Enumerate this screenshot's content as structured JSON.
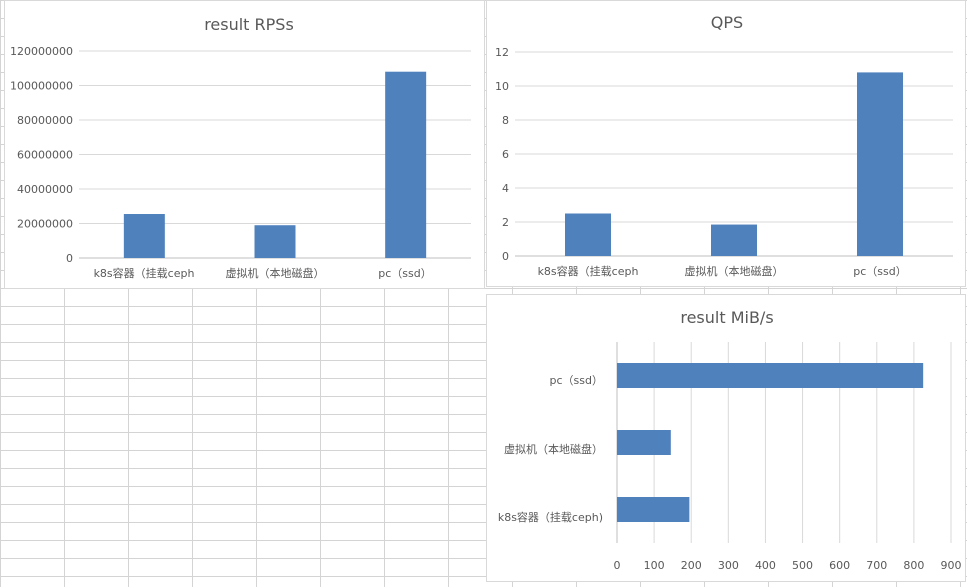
{
  "colors": {
    "bar": "#4f81bd",
    "grid": "#d9d9d9",
    "text": "#595959"
  },
  "chart_data": [
    {
      "id": "rps",
      "type": "bar",
      "title": "result RPSs",
      "categories": [
        "k8s容器（挂载ceph",
        "虚拟机（本地磁盘）",
        "pc（ssd）"
      ],
      "values": [
        25500000,
        19000000,
        108000000
      ],
      "ylim": [
        0,
        120000000
      ],
      "yticks": [
        "0",
        "20000000",
        "40000000",
        "60000000",
        "80000000",
        "100000000",
        "120000000"
      ],
      "grid": true,
      "legend": "none"
    },
    {
      "id": "qps",
      "type": "bar",
      "title": "QPS",
      "categories": [
        "k8s容器（挂载ceph",
        "虚拟机（本地磁盘）",
        "pc（ssd）"
      ],
      "values": [
        2.5,
        1.85,
        10.8
      ],
      "ylim": [
        0,
        12
      ],
      "yticks": [
        "0",
        "2",
        "4",
        "6",
        "8",
        "10",
        "12"
      ],
      "grid": true,
      "legend": "none"
    },
    {
      "id": "mib",
      "type": "bar",
      "orientation": "horizontal",
      "title": "result MiB/s",
      "categories": [
        "pc（ssd）",
        "虚拟机（本地磁盘）",
        "k8s容器（挂载ceph)"
      ],
      "values": [
        825,
        145,
        195
      ],
      "xlim": [
        0,
        900
      ],
      "xticks": [
        "0",
        "100",
        "200",
        "300",
        "400",
        "500",
        "600",
        "700",
        "800",
        "900"
      ],
      "grid": true,
      "legend": "none"
    }
  ]
}
